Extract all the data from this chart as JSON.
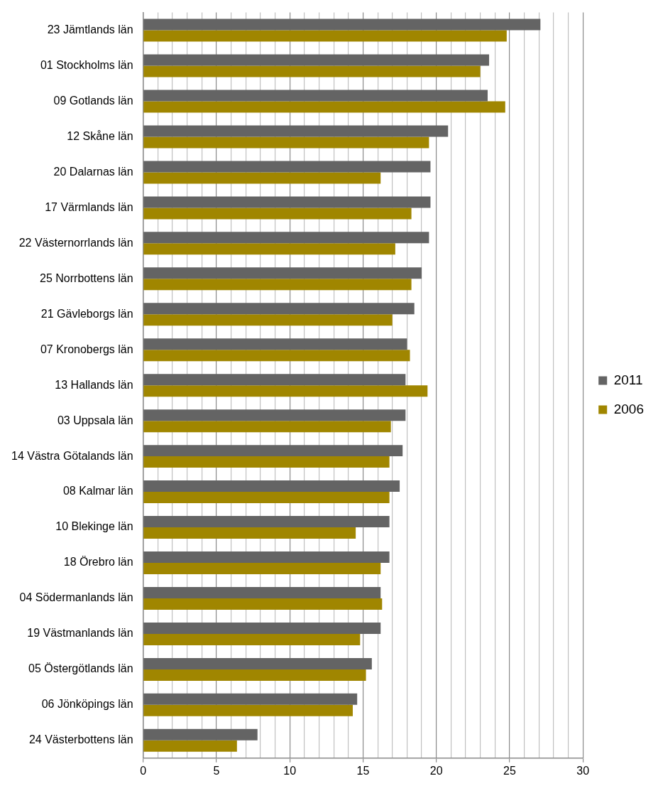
{
  "chart_data": {
    "type": "bar",
    "orientation": "horizontal",
    "categories": [
      "23 Jämtlands län",
      "01 Stockholms län",
      "09 Gotlands län",
      "12 Skåne län",
      "20 Dalarnas län",
      "17 Värmlands län",
      "22 Västernorrlands län",
      "25 Norrbottens län",
      "21 Gävleborgs län",
      "07 Kronobergs län",
      "13 Hallands län",
      "03 Uppsala län",
      "14 Västra Götalands län",
      "08 Kalmar län",
      "10 Blekinge län",
      "18 Örebro län",
      "04 Södermanlands län",
      "19 Västmanlands län",
      "05 Östergötlands län",
      "06 Jönköpings län",
      "24 Västerbottens län"
    ],
    "series": [
      {
        "name": "2011",
        "color": "#646464",
        "values": [
          27.1,
          23.6,
          23.5,
          20.8,
          19.6,
          19.6,
          19.5,
          19.0,
          18.5,
          18.0,
          17.9,
          17.9,
          17.7,
          17.5,
          16.8,
          16.8,
          16.2,
          16.2,
          15.6,
          14.6,
          7.8
        ]
      },
      {
        "name": "2006",
        "color": "#a08600",
        "values": [
          24.8,
          23.0,
          24.7,
          19.5,
          16.2,
          18.3,
          17.2,
          18.3,
          17.0,
          18.2,
          19.4,
          16.9,
          16.8,
          16.8,
          14.5,
          16.2,
          16.3,
          14.8,
          15.2,
          14.3,
          6.4
        ]
      }
    ],
    "xlim": [
      0,
      30
    ],
    "xticks": [
      0,
      {
        "value": 1,
        "label": null
      },
      {
        "value": 2,
        "label": null
      },
      {
        "value": 3,
        "label": null
      },
      {
        "value": 4,
        "label": null
      },
      5,
      {
        "value": 6,
        "label": null
      },
      {
        "value": 7,
        "label": null
      },
      {
        "value": 8,
        "label": null
      },
      {
        "value": 9,
        "label": null
      },
      10,
      {
        "value": 11,
        "label": null
      },
      {
        "value": 12,
        "label": null
      },
      {
        "value": 13,
        "label": null
      },
      {
        "value": 14,
        "label": null
      },
      15,
      {
        "value": 16,
        "label": null
      },
      {
        "value": 17,
        "label": null
      },
      {
        "value": 18,
        "label": null
      },
      {
        "value": 19,
        "label": null
      },
      20,
      {
        "value": 21,
        "label": null
      },
      {
        "value": 22,
        "label": null
      },
      {
        "value": 23,
        "label": null
      },
      {
        "value": 24,
        "label": null
      },
      25,
      {
        "value": 26,
        "label": null
      },
      {
        "value": 27,
        "label": null
      },
      {
        "value": 28,
        "label": null
      },
      {
        "value": 29,
        "label": null
      },
      30
    ],
    "grid": "x",
    "legend": "right"
  }
}
